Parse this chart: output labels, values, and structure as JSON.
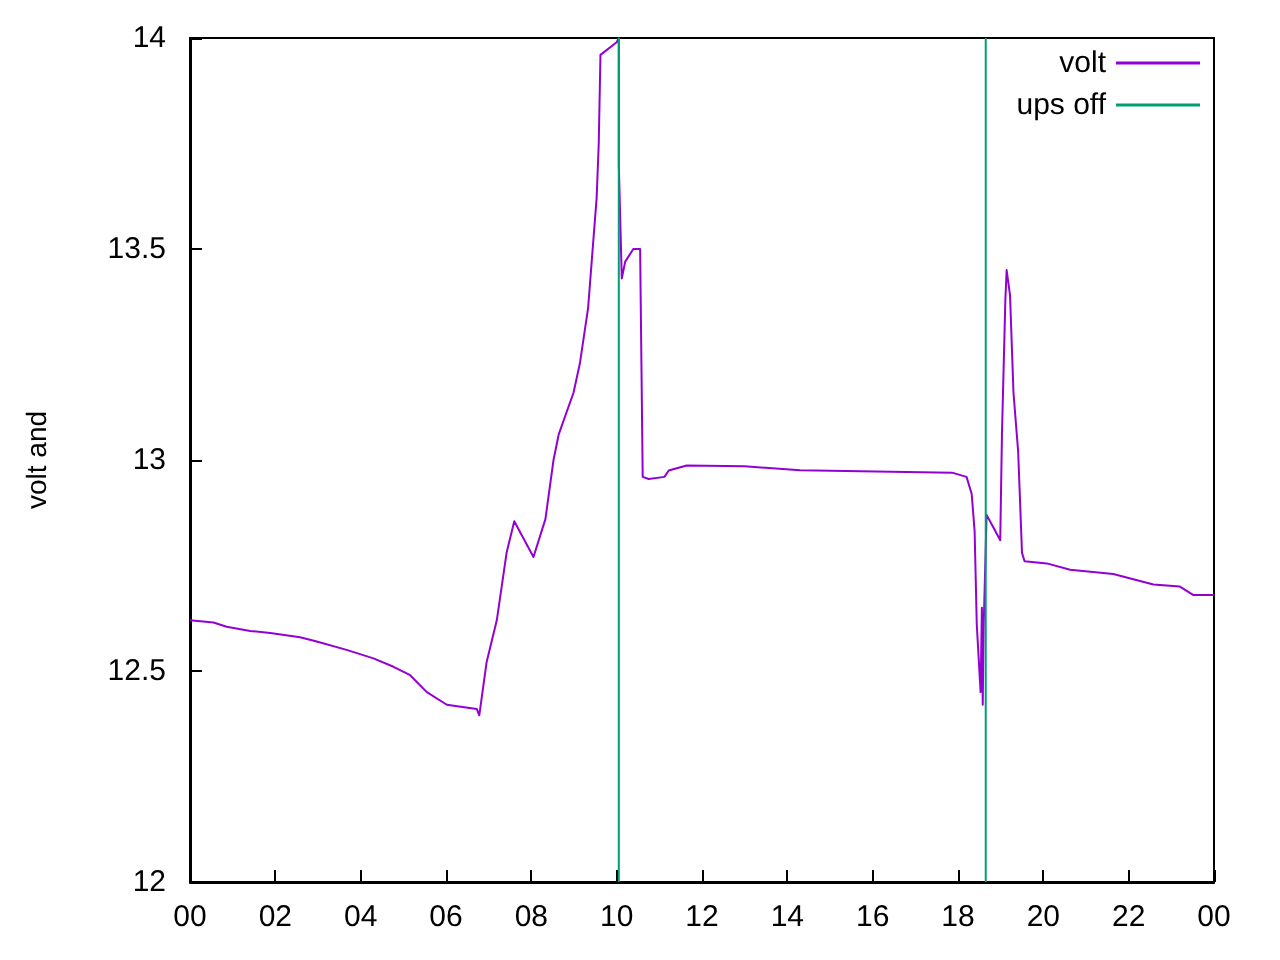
{
  "chart_data": {
    "type": "line",
    "ylabel": "volt and",
    "xlim": [
      0,
      24
    ],
    "xticks": [
      {
        "value": 0,
        "label": "00"
      },
      {
        "value": 2,
        "label": "02"
      },
      {
        "value": 4,
        "label": "04"
      },
      {
        "value": 6,
        "label": "06"
      },
      {
        "value": 8,
        "label": "08"
      },
      {
        "value": 10,
        "label": "10"
      },
      {
        "value": 12,
        "label": "12"
      },
      {
        "value": 14,
        "label": "14"
      },
      {
        "value": 16,
        "label": "16"
      },
      {
        "value": 18,
        "label": "18"
      },
      {
        "value": 20,
        "label": "20"
      },
      {
        "value": 22,
        "label": "22"
      },
      {
        "value": 24,
        "label": "00"
      }
    ],
    "ylim": [
      12,
      14
    ],
    "yticks": [
      12,
      12.5,
      13,
      13.5,
      14
    ],
    "grid": false,
    "legend": "top right",
    "marker": "none",
    "series": [
      {
        "name": "volt",
        "color": "#9400d3",
        "x": [
          0,
          0.55,
          0.86,
          1.41,
          1.88,
          2.58,
          2.97,
          3.67,
          4.3,
          4.77,
          5.16,
          5.55,
          6.02,
          6.72,
          6.78,
          6.95,
          7.19,
          7.42,
          7.6,
          8.05,
          8.33,
          8.52,
          8.64,
          8.99,
          9.14,
          9.33,
          9.53,
          9.58,
          9.62,
          10.0,
          10.05,
          10.05,
          10.12,
          10.2,
          10.39,
          10.55,
          10.58,
          10.61,
          10.75,
          11.12,
          11.22,
          11.64,
          13.0,
          14.3,
          17.86,
          18.2,
          18.32,
          18.36,
          18.39,
          18.44,
          18.53,
          18.56,
          18.58,
          18.6,
          18.67,
          18.83,
          18.99,
          19.03,
          19.11,
          19.14,
          19.22,
          19.3,
          19.41,
          19.5,
          19.56,
          20.08,
          20.63,
          21.64,
          22.58,
          23.2,
          23.52,
          24
        ],
        "values": [
          12.62,
          12.615,
          12.605,
          12.595,
          12.59,
          12.58,
          12.57,
          12.55,
          12.53,
          12.51,
          12.49,
          12.45,
          12.42,
          12.41,
          12.395,
          12.52,
          12.62,
          12.78,
          12.855,
          12.77,
          12.86,
          13.0,
          13.06,
          13.16,
          13.23,
          13.36,
          13.62,
          13.75,
          13.96,
          13.99,
          14.0,
          13.7,
          13.43,
          13.47,
          13.5,
          13.5,
          13.23,
          12.96,
          12.955,
          12.96,
          12.975,
          12.987,
          12.985,
          12.976,
          12.97,
          12.96,
          12.92,
          12.87,
          12.83,
          12.61,
          12.45,
          12.65,
          12.42,
          12.6,
          12.87,
          12.84,
          12.81,
          13.06,
          13.38,
          13.45,
          13.39,
          13.16,
          13.02,
          12.78,
          12.76,
          12.755,
          12.74,
          12.73,
          12.705,
          12.7,
          12.68,
          12.68
        ]
      },
      {
        "name": "ups off",
        "color": "#009e73",
        "x": [
          10.05,
          10.05,
          null,
          18.65,
          18.65
        ],
        "values": [
          12,
          14,
          null,
          14,
          12
        ]
      }
    ]
  }
}
